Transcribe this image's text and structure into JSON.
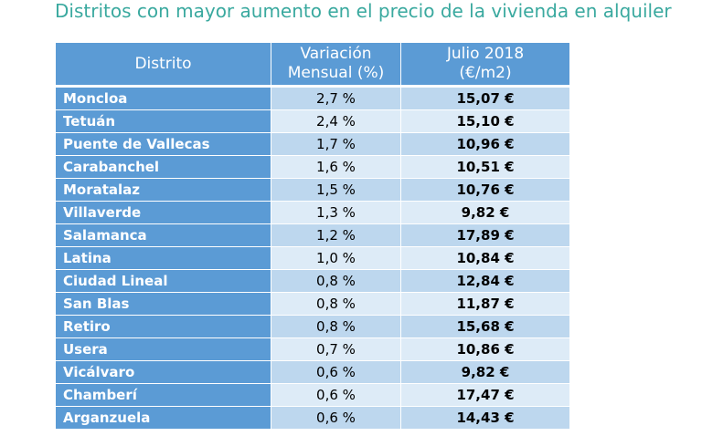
{
  "title": "Distritos con mayor aumento en el precio de la vivienda en alquiler",
  "table": {
    "headers": {
      "district": "Distrito",
      "variation_line1": "Variación",
      "variation_line2": "Mensual (%)",
      "price_line1": "Julio 2018",
      "price_line2": "(€/m2)"
    },
    "rows": [
      {
        "district": "Moncloa",
        "variation": "2,7 %",
        "price": "15,07 €"
      },
      {
        "district": "Tetuán",
        "variation": "2,4 %",
        "price": "15,10 €"
      },
      {
        "district": "Puente de Vallecas",
        "variation": "1,7 %",
        "price": "10,96 €"
      },
      {
        "district": "Carabanchel",
        "variation": "1,6 %",
        "price": "10,51 €"
      },
      {
        "district": "Moratalaz",
        "variation": "1,5 %",
        "price": "10,76 €"
      },
      {
        "district": "Villaverde",
        "variation": "1,3 %",
        "price": "9,82 €"
      },
      {
        "district": "Salamanca",
        "variation": "1,2 %",
        "price": "17,89 €"
      },
      {
        "district": "Latina",
        "variation": "1,0 %",
        "price": "10,84 €"
      },
      {
        "district": "Ciudad Lineal",
        "variation": "0,8 %",
        "price": "12,84 €"
      },
      {
        "district": "San Blas",
        "variation": "0,8 %",
        "price": "11,87 €"
      },
      {
        "district": "Retiro",
        "variation": "0,8 %",
        "price": "15,68 €"
      },
      {
        "district": "Usera",
        "variation": "0,7 %",
        "price": "10,86 €"
      },
      {
        "district": "Vicálvaro",
        "variation": "0,6 %",
        "price": "9,82 €"
      },
      {
        "district": "Chamberí",
        "variation": "0,6 %",
        "price": "17,47 €"
      },
      {
        "district": "Arganzuela",
        "variation": "0,6 %",
        "price": "14,43 €"
      }
    ]
  },
  "colors": {
    "title": "#3aa99f",
    "header_background": "#5b9bd5",
    "row_dark": "#bdd7ee",
    "row_light": "#ddebf7"
  }
}
